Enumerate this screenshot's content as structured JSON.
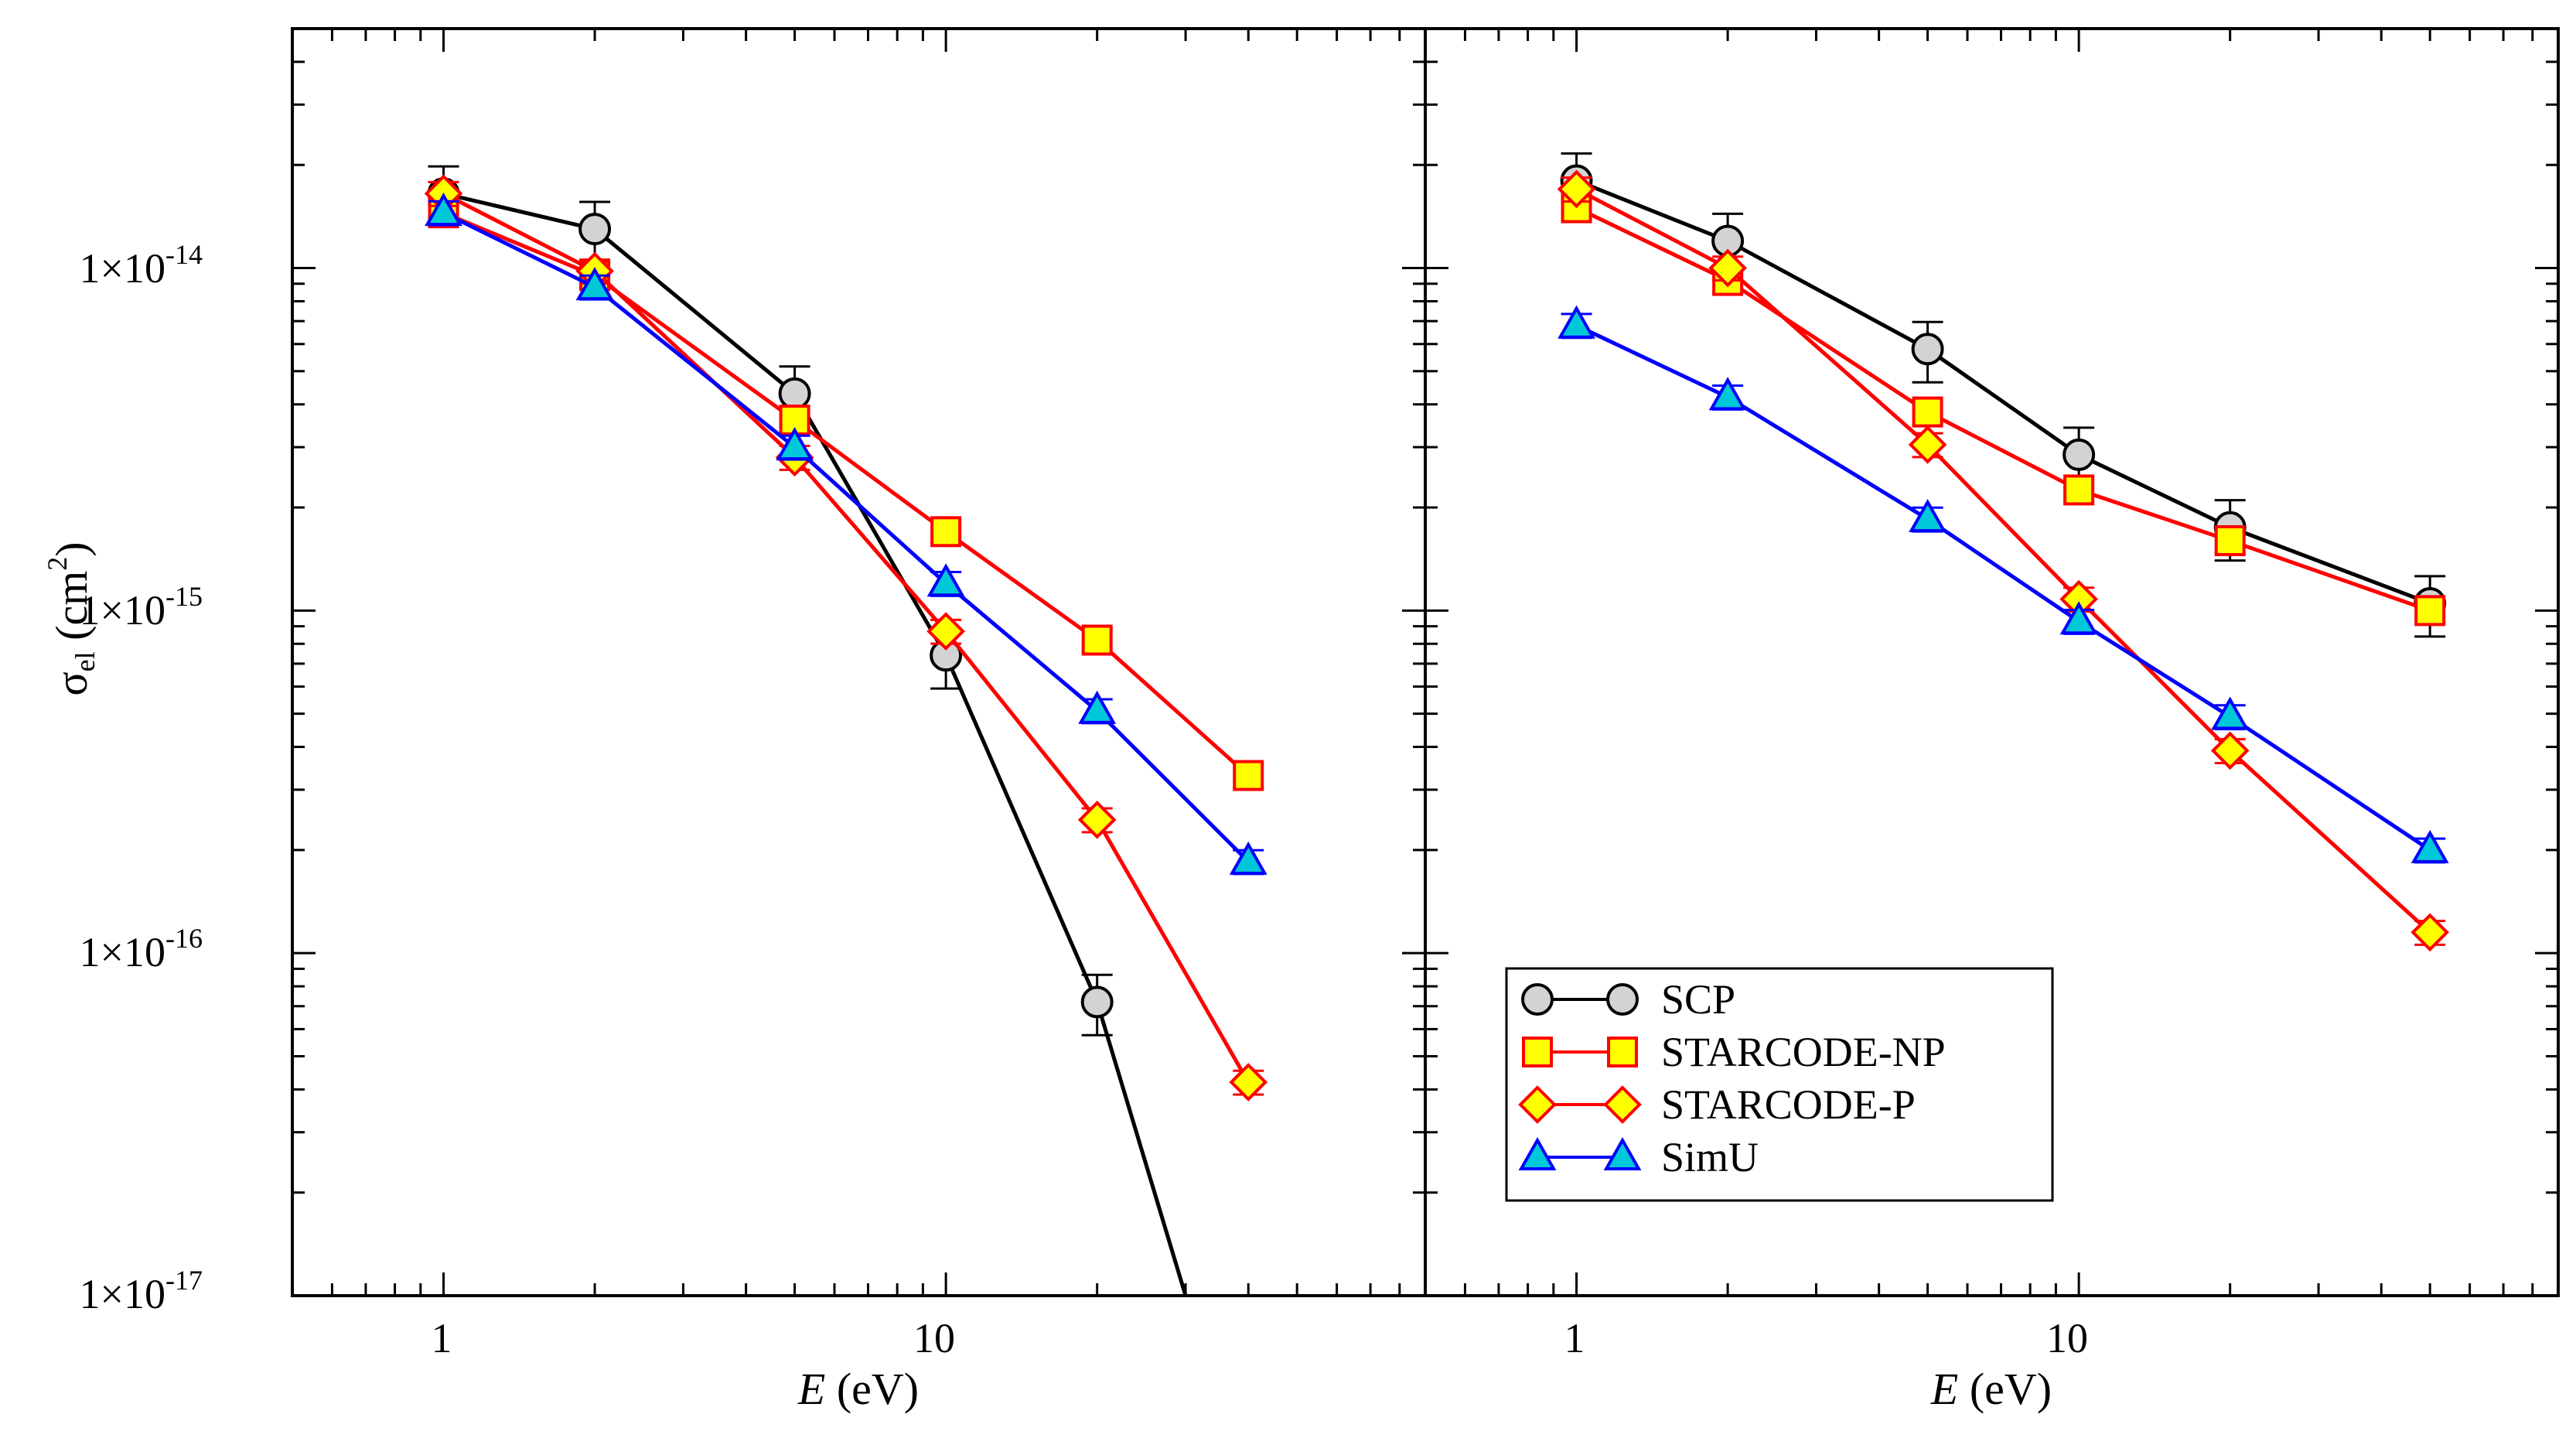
{
  "chart_data": {
    "type": "line",
    "x_scale": "log",
    "y_scale": "log",
    "ylabel": {
      "symbol": "σ",
      "subscript": "el",
      "unit_open": " (cm",
      "superscript": "2",
      "unit_close": ")"
    },
    "xlabel": {
      "var": "E",
      "unit": " (eV)"
    },
    "xlim": [
      0.5,
      90
    ],
    "ylim": [
      1e-17,
      5e-14
    ],
    "x_ticks": [
      {
        "value": 1,
        "label": "1"
      },
      {
        "value": 10,
        "label": "10"
      }
    ],
    "y_ticks": [
      {
        "value": 1e-14,
        "mant": "1×10",
        "exp": "-14"
      },
      {
        "value": 1e-15,
        "mant": "1×10",
        "exp": "-15"
      },
      {
        "value": 1e-16,
        "mant": "1×10",
        "exp": "-16"
      },
      {
        "value": 1e-17,
        "mant": "1×10",
        "exp": "-17"
      }
    ],
    "legend": {
      "position": "bottom-left of right panel",
      "entries": [
        {
          "series": "SCP",
          "label": "SCP"
        },
        {
          "series": "STARCODE-NP",
          "label": "STARCODE-NP"
        },
        {
          "series": "STARCODE-P",
          "label": "STARCODE-P"
        },
        {
          "series": "SimU",
          "label": "SimU"
        }
      ]
    },
    "styles": {
      "SCP": {
        "line": "#000000",
        "marker": "circle",
        "fill": "#d3d3d3",
        "stroke": "#000000"
      },
      "STARCODE-NP": {
        "line": "#ff0000",
        "marker": "square",
        "fill": "#ffff00",
        "stroke": "#ff0000"
      },
      "STARCODE-P": {
        "line": "#ff0000",
        "marker": "diamond",
        "fill": "#ffff00",
        "stroke": "#ff0000"
      },
      "SimU": {
        "line": "#0000ff",
        "marker": "triangle",
        "fill": "#00c8d8",
        "stroke": "#0000ff"
      }
    },
    "panels": [
      {
        "name": "left",
        "series": [
          {
            "name": "SCP",
            "x": [
              1,
              2,
              5,
              10,
              20,
              30
            ],
            "y": [
              1.65e-14,
              1.3e-14,
              4.3e-15,
              7.4e-16,
              7.2e-17,
              1e-17
            ],
            "err": [
              0.2,
              0.2,
              0.2,
              0.2,
              0.2,
              0
            ],
            "marker_count": 5
          },
          {
            "name": "STARCODE-NP",
            "x": [
              1,
              2,
              5,
              10,
              20,
              40
            ],
            "y": [
              1.45e-14,
              9.5e-15,
              3.6e-15,
              1.7e-15,
              8.2e-16,
              3.3e-16
            ],
            "err": [
              0.08,
              0.08,
              0.08,
              0.08,
              0.08,
              0.08
            ]
          },
          {
            "name": "STARCODE-P",
            "x": [
              1,
              2,
              5,
              10,
              20,
              40
            ],
            "y": [
              1.65e-14,
              9.8e-15,
              2.8e-15,
              8.7e-16,
              2.45e-16,
              4.2e-17
            ],
            "err": [
              0.08,
              0.08,
              0.08,
              0.08,
              0.08,
              0.08
            ]
          },
          {
            "name": "SimU",
            "x": [
              1,
              2,
              5,
              10,
              20,
              40
            ],
            "y": [
              1.45e-14,
              8.8e-15,
              3e-15,
              1.2e-15,
              5.1e-16,
              1.85e-16
            ],
            "err": [
              0.08,
              0.08,
              0.08,
              0.08,
              0.08,
              0.08
            ]
          }
        ]
      },
      {
        "name": "right",
        "series": [
          {
            "name": "SCP",
            "x": [
              1,
              2,
              5,
              10,
              20,
              50
            ],
            "y": [
              1.8e-14,
              1.2e-14,
              5.8e-15,
              2.85e-15,
              1.75e-15,
              1.05e-15
            ],
            "err": [
              0.2,
              0.2,
              0.2,
              0.2,
              0.2,
              0.2
            ]
          },
          {
            "name": "STARCODE-NP",
            "x": [
              1,
              2,
              5,
              10,
              20,
              50
            ],
            "y": [
              1.5e-14,
              9.2e-15,
              3.8e-15,
              2.25e-15,
              1.6e-15,
              1e-15
            ],
            "err": [
              0.08,
              0.08,
              0.08,
              0.08,
              0.08,
              0.08
            ]
          },
          {
            "name": "STARCODE-P",
            "x": [
              1,
              2,
              5,
              10,
              20,
              50
            ],
            "y": [
              1.7e-14,
              1e-14,
              3.05e-15,
              1.08e-15,
              3.9e-16,
              1.15e-16
            ],
            "err": [
              0.08,
              0.08,
              0.08,
              0.08,
              0.08,
              0.08
            ]
          },
          {
            "name": "SimU",
            "x": [
              1,
              2,
              5,
              10,
              20,
              50
            ],
            "y": [
              6.8e-15,
              4.2e-15,
              1.85e-15,
              9.3e-16,
              4.9e-16,
              2e-16
            ],
            "err": [
              0.08,
              0.08,
              0.08,
              0.08,
              0.08,
              0.08
            ]
          }
        ]
      }
    ]
  }
}
